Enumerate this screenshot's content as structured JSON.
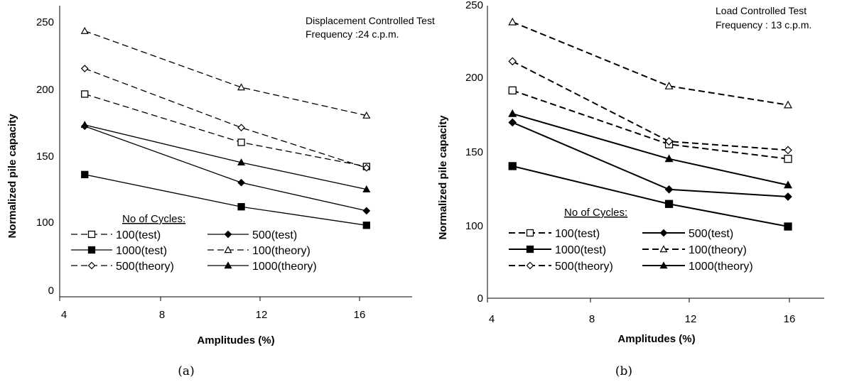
{
  "chart_data": [
    {
      "type": "line",
      "caption": "(a)",
      "xlabel": "Amplitudes (%)",
      "ylabel": "Normalized pile capacity",
      "xlim": [
        4,
        20
      ],
      "ylim": [
        0,
        250
      ],
      "xticks": [
        "4",
        "8",
        "12",
        "16"
      ],
      "yticks": [
        "0",
        "100",
        "150",
        "200",
        "250"
      ],
      "annotation": [
        "Displacement Controlled Test",
        "Frequency :24 c.p.m."
      ],
      "legend_title": "No of Cycles:",
      "x": [
        5,
        11.25,
        16.25
      ],
      "series": [
        {
          "name": "100(test)",
          "values": [
            195,
            159,
            141
          ],
          "dash": true,
          "marker": "square",
          "filled": false
        },
        {
          "name": "500(test)",
          "values": [
            171,
            129,
            108
          ],
          "dash": false,
          "marker": "diamond",
          "filled": true
        },
        {
          "name": "1000(test)",
          "values": [
            135,
            111,
            95
          ],
          "dash": false,
          "marker": "square",
          "filled": true
        },
        {
          "name": "100(theory)",
          "values": [
            242,
            200,
            179
          ],
          "dash": true,
          "marker": "triangle",
          "filled": false
        },
        {
          "name": "500(theory)",
          "values": [
            214,
            170,
            140
          ],
          "dash": true,
          "marker": "diamond",
          "filled": false
        },
        {
          "name": "1000(theory)",
          "values": [
            172,
            144,
            124
          ],
          "dash": false,
          "marker": "triangle",
          "filled": true
        }
      ]
    },
    {
      "type": "line",
      "caption": "(b)",
      "xlabel": "Amplitudes (%)",
      "ylabel": "Normalized pile capacity",
      "xlim": [
        4,
        18
      ],
      "ylim": [
        0,
        250
      ],
      "xticks": [
        "4",
        "8",
        "12",
        "16"
      ],
      "yticks": [
        "0",
        "100",
        "150",
        "200",
        "250"
      ],
      "annotation": [
        "Load Controlled  Test",
        "Frequency : 13 c.p.m."
      ],
      "legend_title": "No of Cycles:",
      "x": [
        5,
        11.25,
        16
      ],
      "series": [
        {
          "name": "100(test)",
          "values": [
            193,
            156,
            146
          ],
          "dash": true,
          "marker": "square",
          "filled": false
        },
        {
          "name": "500(test)",
          "values": [
            171,
            125,
            120
          ],
          "dash": false,
          "marker": "diamond",
          "filled": true
        },
        {
          "name": "1000(test)",
          "values": [
            141,
            115,
            99
          ],
          "dash": false,
          "marker": "square",
          "filled": true
        },
        {
          "name": "100(theory)",
          "values": [
            240,
            196,
            183
          ],
          "dash": true,
          "marker": "triangle",
          "filled": false
        },
        {
          "name": "500(theory)",
          "values": [
            213,
            158,
            152
          ],
          "dash": true,
          "marker": "diamond",
          "filled": false
        },
        {
          "name": "1000(theory)",
          "values": [
            177,
            146,
            128
          ],
          "dash": false,
          "marker": "triangle",
          "filled": true
        }
      ]
    }
  ]
}
